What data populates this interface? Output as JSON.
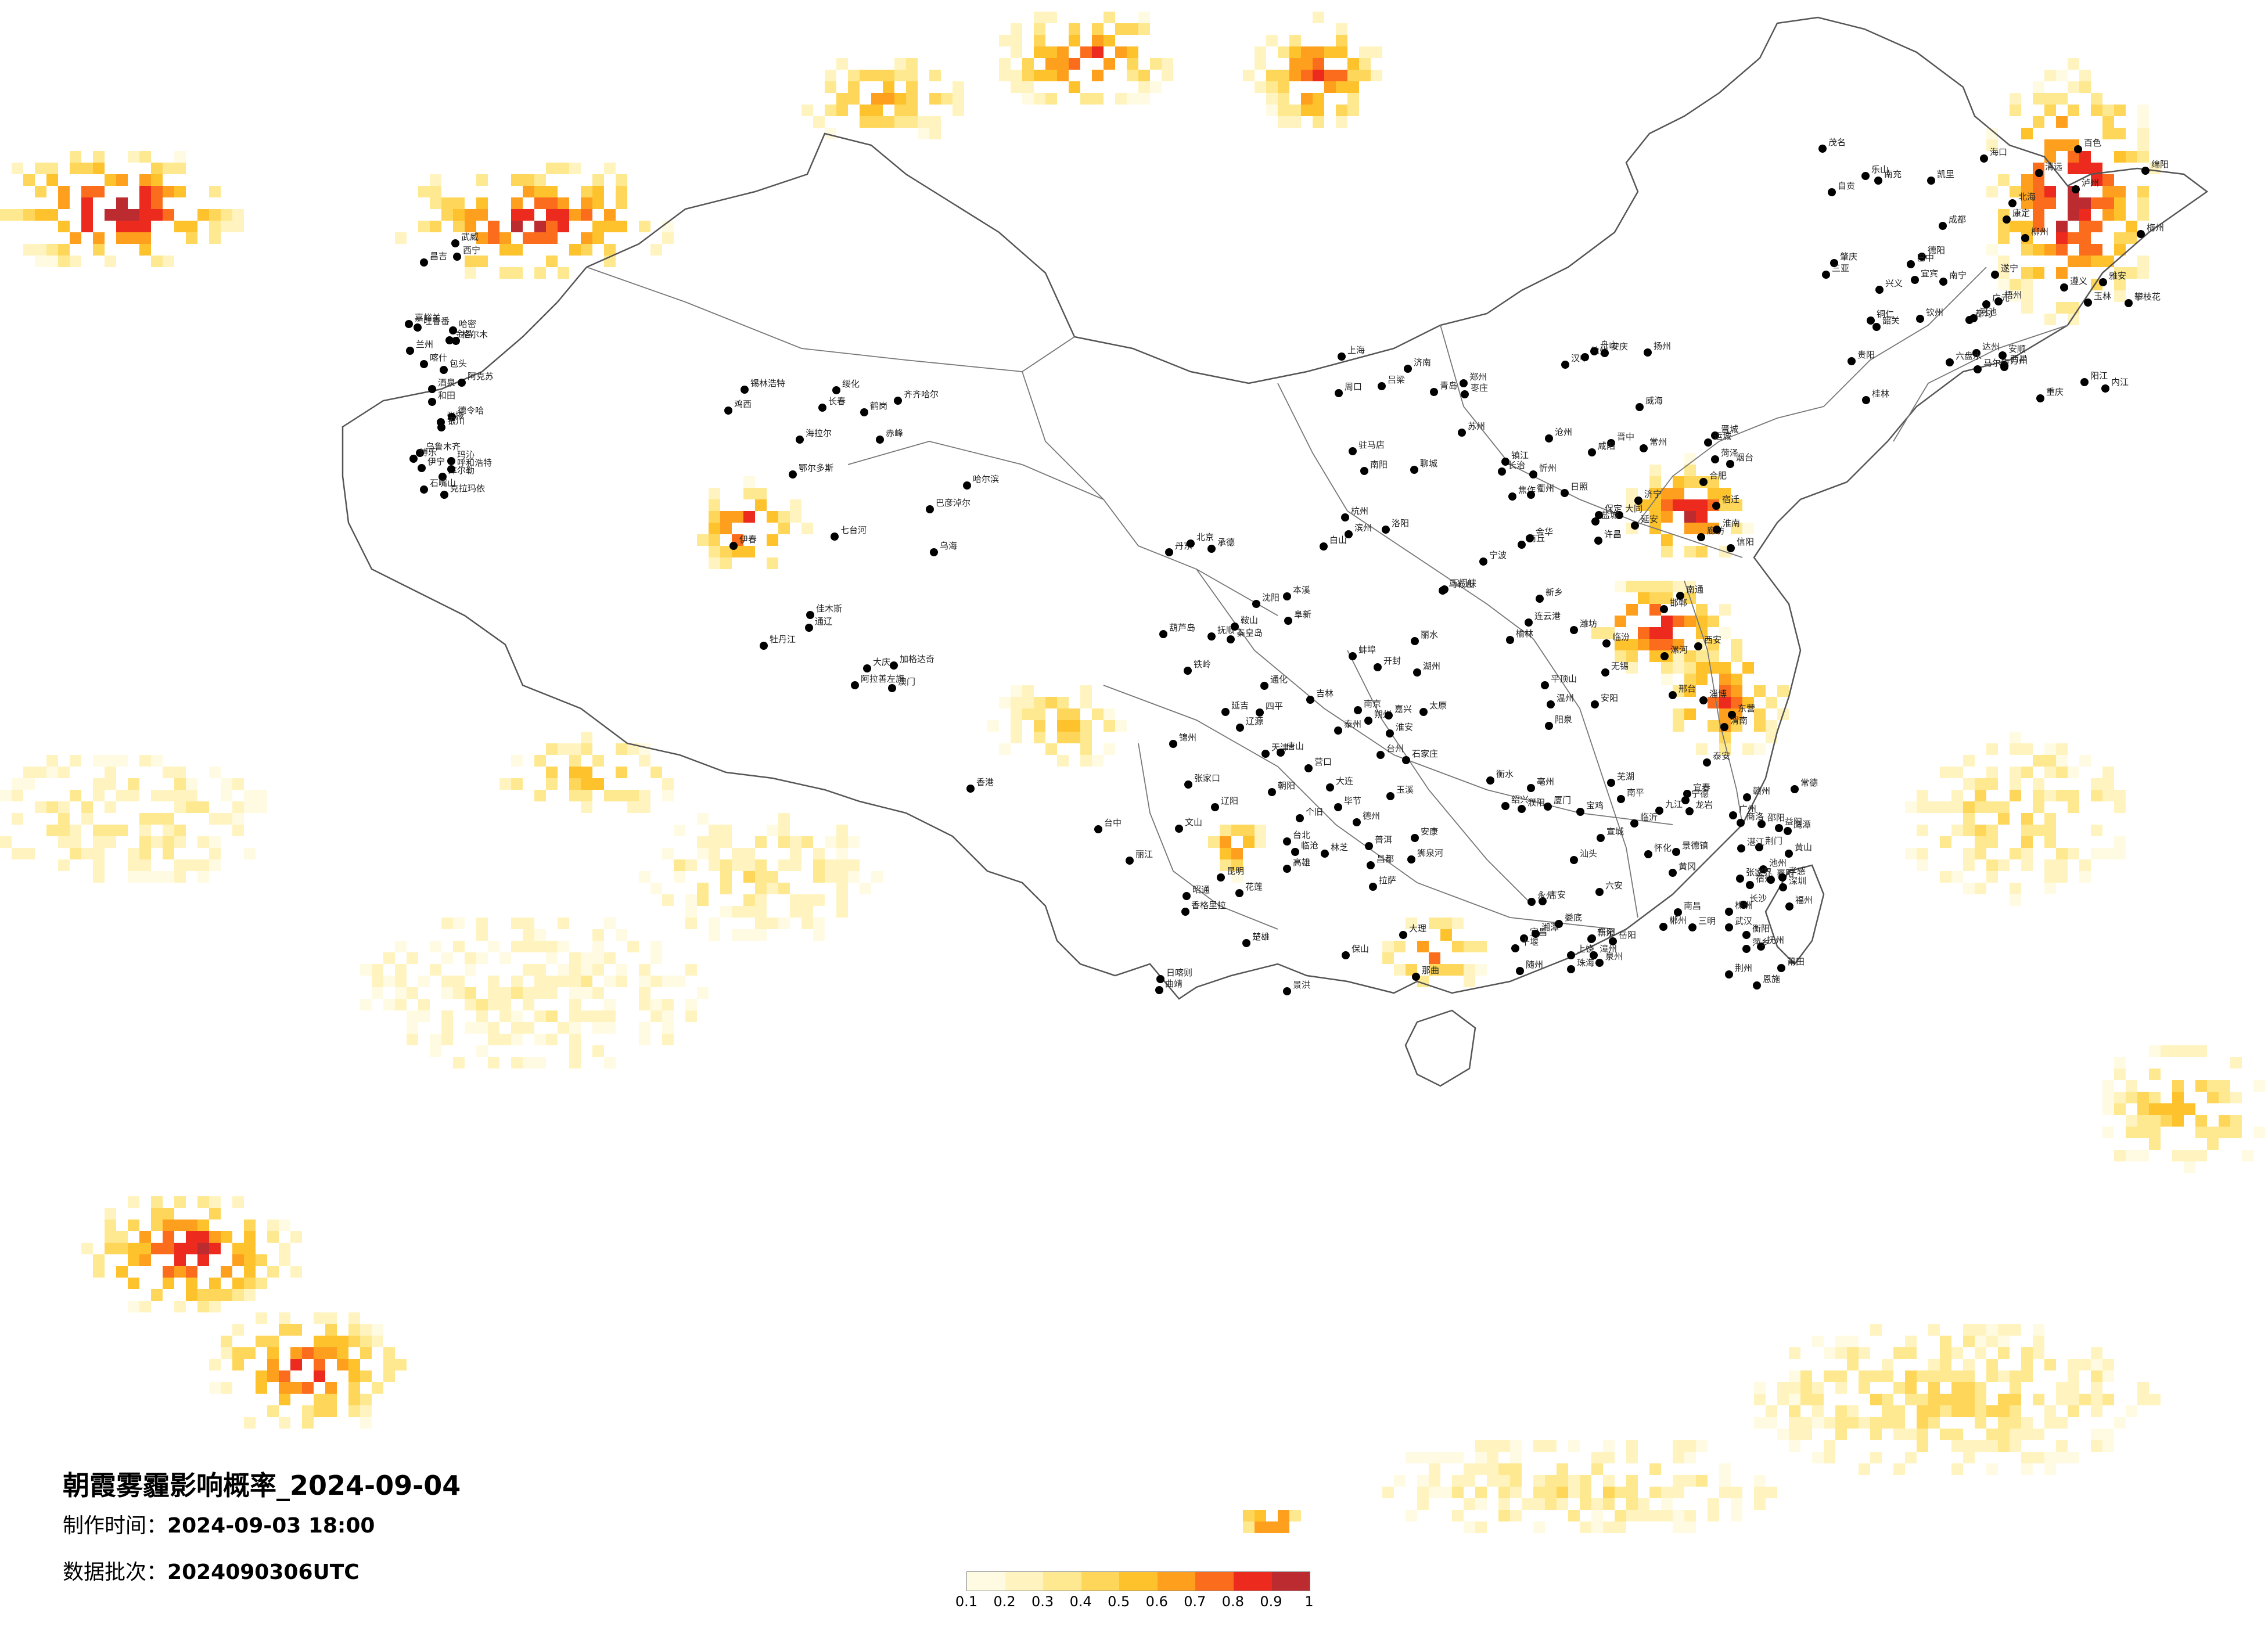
{
  "map": {
    "title": "朝霞雾霾影响概率_2024-09-04",
    "made_time_label": "制作时间：",
    "made_time": "2024-09-03 18:00",
    "batch_label": "数据批次：",
    "batch": "2024090306UTC"
  },
  "legend": {
    "colors": [
      "#fffbe3",
      "#fff4c0",
      "#fee990",
      "#fed75a",
      "#fec22d",
      "#fea01d",
      "#fb6d1c",
      "#ec2a1e",
      "#bb2b2f"
    ],
    "ticks": [
      "0.1",
      "0.2",
      "0.3",
      "0.4",
      "0.5",
      "0.6",
      "0.7",
      "0.8",
      "0.9",
      "1"
    ]
  },
  "cities": [
    "克拉玛依",
    "昌吉",
    "乌鲁木齐",
    "吐鲁番",
    "哈密",
    "库尔勒",
    "阿克苏",
    "喀什",
    "和田",
    "伊宁",
    "博乐",
    "嘉峪关",
    "酒泉",
    "张掖",
    "金昌",
    "武威",
    "兰州",
    "西宁",
    "德令哈",
    "格尔木",
    "玛沁",
    "银川",
    "石嘴山",
    "呼和浩特",
    "包头",
    "鄂尔多斯",
    "乌海",
    "巴彦淖尔",
    "阿拉善左旗",
    "赤峰",
    "通辽",
    "锡林浩特",
    "海拉尔",
    "加格达奇",
    "齐齐哈尔",
    "大庆",
    "绥化",
    "哈尔滨",
    "伊春",
    "佳木斯",
    "鹤岗",
    "七台河",
    "鸡西",
    "牡丹江",
    "长春",
    "吉林",
    "四平",
    "辽源",
    "通化",
    "白山",
    "延吉",
    "沈阳",
    "抚顺",
    "本溪",
    "丹东",
    "大连",
    "营口",
    "鞍山",
    "辽阳",
    "锦州",
    "葫芦岛",
    "朝阳",
    "阜新",
    "铁岭",
    "承德",
    "张家口",
    "北京",
    "天津",
    "唐山",
    "秦皇岛",
    "廊坊",
    "保定",
    "石家庄",
    "沧州",
    "衡水",
    "邢台",
    "邯郸",
    "太原",
    "大同",
    "朔州",
    "忻州",
    "吕梁",
    "晋中",
    "阳泉",
    "长治",
    "晋城",
    "临汾",
    "运城",
    "济南",
    "青岛",
    "烟台",
    "威海",
    "潍坊",
    "淄博",
    "东营",
    "滨州",
    "德州",
    "聊城",
    "泰安",
    "济宁",
    "临沂",
    "日照",
    "枣庄",
    "菏泽",
    "郑州",
    "开封",
    "洛阳",
    "新乡",
    "焦作",
    "安阳",
    "濮阳",
    "许昌",
    "漯河",
    "平顶山",
    "南阳",
    "信阳",
    "周口",
    "驻马店",
    "商丘",
    "三门峡",
    "西安",
    "宝鸡",
    "咸阳",
    "渭南",
    "延安",
    "榆林",
    "汉中",
    "安康",
    "商洛",
    "南京",
    "苏州",
    "无锡",
    "常州",
    "镇江",
    "扬州",
    "泰州",
    "南通",
    "盐城",
    "淮安",
    "宿迁",
    "徐州",
    "连云港",
    "上海",
    "杭州",
    "宁波",
    "绍兴",
    "湖州",
    "嘉兴",
    "金华",
    "衢州",
    "台州",
    "温州",
    "丽水",
    "舟山",
    "合肥",
    "芜湖",
    "蚌埠",
    "淮南",
    "马鞍山",
    "安庆",
    "黄山",
    "阜阳",
    "宿州",
    "六安",
    "亳州",
    "池州",
    "宣城",
    "福州",
    "厦门",
    "泉州",
    "漳州",
    "莆田",
    "三明",
    "南平",
    "龙岩",
    "宁德",
    "南昌",
    "九江",
    "景德镇",
    "上饶",
    "鹰潭",
    "抚州",
    "宜春",
    "新余",
    "萍乡",
    "吉安",
    "赣州",
    "武汉",
    "宜昌",
    "襄阳",
    "十堰",
    "荆州",
    "荆门",
    "孝感",
    "黄冈",
    "随州",
    "恩施",
    "长沙",
    "株洲",
    "湘潭",
    "衡阳",
    "岳阳",
    "常德",
    "益阳",
    "娄底",
    "邵阳",
    "怀化",
    "郴州",
    "永州",
    "张家界",
    "广州",
    "深圳",
    "珠海",
    "汕头",
    "湛江",
    "茂名",
    "韶关",
    "梅州",
    "清远",
    "肇庆",
    "阳江",
    "南宁",
    "桂林",
    "柳州",
    "梧州",
    "玉林",
    "百色",
    "河池",
    "钦州",
    "北海",
    "海口",
    "三亚",
    "成都",
    "绵阳",
    "德阳",
    "广元",
    "南充",
    "达州",
    "巴中",
    "遂宁",
    "内江",
    "自贡",
    "宜宾",
    "泸州",
    "乐山",
    "雅安",
    "西昌",
    "攀枝花",
    "马尔康",
    "康定",
    "重庆",
    "万州",
    "贵阳",
    "遵义",
    "六盘水",
    "安顺",
    "都匀",
    "凯里",
    "兴义",
    "铜仁",
    "毕节",
    "昆明",
    "曲靖",
    "玉溪",
    "楚雄",
    "大理",
    "丽江",
    "保山",
    "临沧",
    "普洱",
    "景洪",
    "个旧",
    "文山",
    "昭通",
    "香格里拉",
    "拉萨",
    "日喀则",
    "那曲",
    "昌都",
    "林芝",
    "狮泉河",
    "台北",
    "台中",
    "高雄",
    "花莲",
    "香港",
    "澳门"
  ]
}
